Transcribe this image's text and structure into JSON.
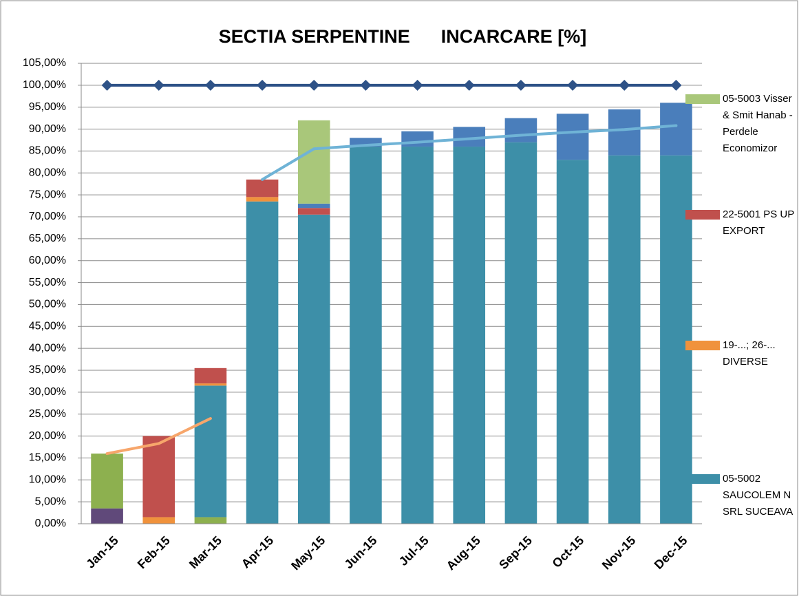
{
  "chart_data": {
    "type": "bar",
    "title": "SECTIA SERPENTINE      INCARCARE [%]",
    "categories": [
      "Jan-15",
      "Feb-15",
      "Mar-15",
      "Apr-15",
      "May-15",
      "Jun-15",
      "Jul-15",
      "Aug-15",
      "Sep-15",
      "Oct-15",
      "Nov-15",
      "Dec-15"
    ],
    "ylim": [
      0,
      105
    ],
    "yticks": [
      {
        "value": 0,
        "label": "0,00%"
      },
      {
        "value": 5,
        "label": "5,00%"
      },
      {
        "value": 10,
        "label": "10,00%"
      },
      {
        "value": 15,
        "label": "15,00%"
      },
      {
        "value": 20,
        "label": "20,00%"
      },
      {
        "value": 25,
        "label": "25,00%"
      },
      {
        "value": 30,
        "label": "30,00%"
      },
      {
        "value": 35,
        "label": "35,00%"
      },
      {
        "value": 40,
        "label": "40,00%"
      },
      {
        "value": 45,
        "label": "45,00%"
      },
      {
        "value": 50,
        "label": "50,00%"
      },
      {
        "value": 55,
        "label": "55,00%"
      },
      {
        "value": 60,
        "label": "60,00%"
      },
      {
        "value": 65,
        "label": "65,00%"
      },
      {
        "value": 70,
        "label": "70,00%"
      },
      {
        "value": 75,
        "label": "75,00%"
      },
      {
        "value": 80,
        "label": "80,00%"
      },
      {
        "value": 85,
        "label": "85,00%"
      },
      {
        "value": 90,
        "label": "90,00%"
      },
      {
        "value": 95,
        "label": "95,00%"
      },
      {
        "value": 100,
        "label": "100,00%"
      },
      {
        "value": 105,
        "label": "105,00%"
      }
    ],
    "grid": true,
    "stacked": true,
    "series": [
      {
        "color": "#60497a",
        "values": [
          3.5,
          0,
          0,
          0,
          0,
          0,
          0,
          0,
          0,
          0,
          0,
          0
        ]
      },
      {
        "color": "#8db04f",
        "values": [
          12.5,
          0,
          1.5,
          0,
          0,
          0,
          0,
          0,
          0,
          0,
          0,
          0
        ]
      },
      {
        "color": "#3d8fa8",
        "name": "05-5002 SAUCOLEM N SRL SUCEAVA",
        "values": [
          0,
          0,
          30,
          73.5,
          70.5,
          86,
          86,
          86,
          87,
          83,
          84,
          84
        ]
      },
      {
        "color": "#f0923c",
        "name": "19-...; 26-... DIVERSE",
        "values": [
          0,
          1.5,
          0.5,
          1,
          0,
          0,
          0,
          0,
          0,
          0,
          0,
          0
        ]
      },
      {
        "color": "#c0504d",
        "name": "22-5001 PS UP EXPORT",
        "values": [
          0,
          18.5,
          3.5,
          4,
          1.5,
          0,
          0,
          0,
          0,
          0,
          0,
          0
        ]
      },
      {
        "color": "#4a7ebb",
        "values": [
          0,
          0,
          0,
          0,
          1,
          2,
          3.5,
          4.5,
          5.5,
          10.5,
          10.5,
          12
        ]
      },
      {
        "color": "#a9c77a",
        "name": "05-5003 Visser & Smit Hanab -Perdele Economizor",
        "values": [
          0,
          0,
          0,
          0,
          19,
          0,
          0,
          0,
          0,
          0,
          0,
          0
        ]
      }
    ],
    "lines": [
      {
        "color": "#2e5287",
        "marker": "diamond",
        "values": [
          100,
          100,
          100,
          100,
          100,
          100,
          100,
          100,
          100,
          100,
          100,
          100
        ]
      },
      {
        "color": "#f7a66b",
        "values": [
          16,
          18.3,
          24,
          null,
          null,
          null,
          null,
          null,
          null,
          null,
          null,
          null
        ]
      },
      {
        "color": "#6fb3d6",
        "values": [
          null,
          null,
          null,
          78.5,
          85.5,
          86.3,
          87,
          87.8,
          88.6,
          89.3,
          89.9,
          90.8
        ]
      }
    ],
    "legend_order": [
      6,
      4,
      3,
      2
    ]
  }
}
